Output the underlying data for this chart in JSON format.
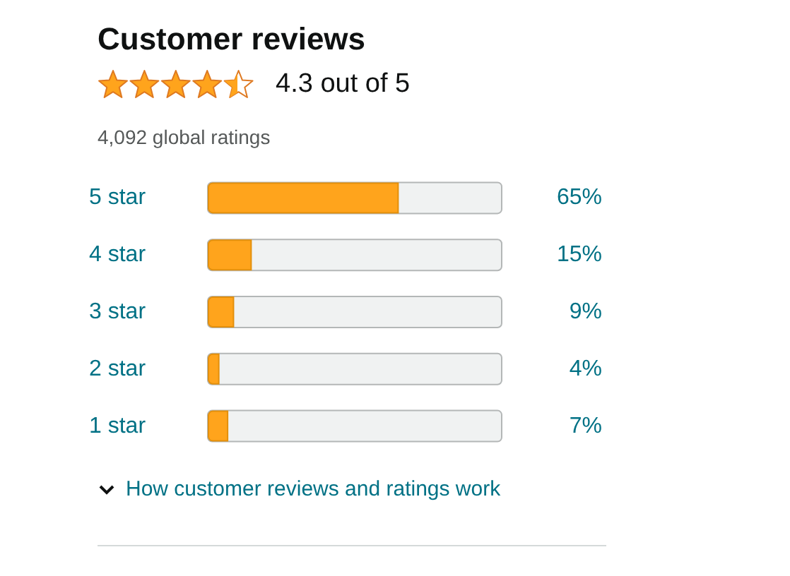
{
  "chart_data": {
    "type": "bar",
    "orientation": "horizontal",
    "title": "Customer reviews",
    "subtitle": "4,092 global ratings",
    "annotations": [
      "4.3 out of 5",
      "How customer reviews and ratings work"
    ],
    "categories": [
      "5 star",
      "4 star",
      "3 star",
      "2 star",
      "1 star"
    ],
    "values": [
      65,
      15,
      9,
      4,
      7
    ],
    "value_labels": [
      "65%",
      "15%",
      "9%",
      "4%",
      "7%"
    ],
    "color": "#ffa41c",
    "xlim": [
      0,
      100
    ],
    "tick_labels": "y"
  }
}
